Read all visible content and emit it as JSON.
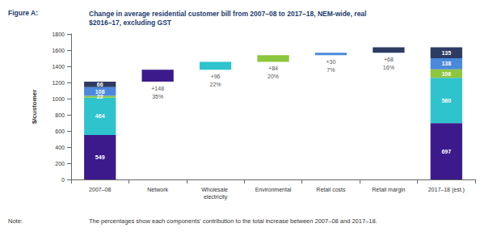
{
  "chart_data": {
    "type": "waterfall",
    "figure_label": "Figure A:",
    "title": "Change in average residential customer bill from 2007–08 to 2017–18, NEM-wide, real $2016–17, excluding GST",
    "ylabel": "$/customer",
    "note_label": "Note:",
    "note": "The percentages show each components' contribution to the total increase between 2007–08 and 2017–18.",
    "categories": [
      "2007–08",
      "Network",
      "Wholesale electricity",
      "Environmental",
      "Retail costs",
      "Retail margin",
      "2017–18 (est.)"
    ],
    "ylim": [
      0,
      1800
    ],
    "yticks": [
      0,
      200,
      400,
      600,
      800,
      1000,
      1200,
      1400,
      1600,
      1800
    ],
    "grid": false,
    "stacked": true,
    "data_labels": true,
    "totals": [
      1210,
      null,
      null,
      null,
      null,
      null,
      1636
    ],
    "contributions": [
      null,
      35,
      22,
      20,
      7,
      16,
      null
    ],
    "contribution_labels": [
      null,
      "35%",
      "22%",
      "20%",
      "7%",
      "16%",
      null
    ],
    "series": [
      {
        "color": "#3d1a8c",
        "values": [
          549,
          148,
          null,
          null,
          null,
          null,
          697
        ],
        "value_labels": [
          "549",
          "+148",
          null,
          null,
          null,
          null,
          "697"
        ]
      },
      {
        "color": "#2fc3cd",
        "values": [
          464,
          null,
          96,
          null,
          null,
          null,
          560
        ],
        "value_labels": [
          "464",
          null,
          "+96",
          null,
          null,
          null,
          "560"
        ]
      },
      {
        "color": "#8dc63f",
        "values": [
          22,
          null,
          null,
          84,
          null,
          null,
          106
        ],
        "value_labels": [
          "22",
          null,
          null,
          "+84",
          null,
          null,
          "106"
        ]
      },
      {
        "color": "#4a89dc",
        "values": [
          108,
          null,
          null,
          null,
          30,
          null,
          138
        ],
        "value_labels": [
          "108",
          null,
          null,
          null,
          "+30",
          null,
          "138"
        ]
      },
      {
        "color": "#2e3b62",
        "values": [
          66,
          null,
          null,
          null,
          null,
          68,
          135
        ],
        "value_labels": [
          "66",
          null,
          null,
          null,
          null,
          "+68",
          "135"
        ]
      }
    ]
  }
}
